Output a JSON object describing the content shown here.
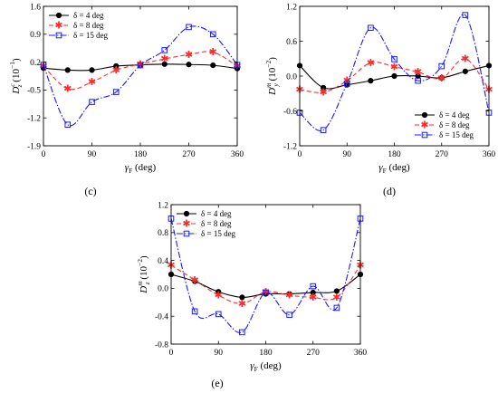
{
  "chart_data": [
    {
      "panel_label": "(c)",
      "type": "line",
      "xlabel": "γ",
      "xlabel_sub": "F",
      "xlabel_unit": "(deg)",
      "ylabel": "D",
      "ylabel_sup": "c",
      "ylabel_sub": "z",
      "ylabel_unit": "(10",
      "ylabel_unit_exp": "−1",
      "ylabel_unit_close": ")",
      "xlim": [
        0,
        360
      ],
      "ylim": [
        -1.9,
        1.6
      ],
      "xticks": [
        "0",
        "90",
        "180",
        "270",
        "360"
      ],
      "yticks": [
        "1.6",
        "0.9",
        "0.2",
        "-0.5",
        "-1.2",
        "-1.9"
      ],
      "x": [
        0,
        45,
        90,
        135,
        180,
        225,
        270,
        315,
        360
      ],
      "series": [
        {
          "name": "δ = 4 deg",
          "color": "#000000",
          "marker": "circle",
          "dash": "",
          "values": [
            0.05,
            0.0,
            0.0,
            0.1,
            0.13,
            0.15,
            0.14,
            0.12,
            0.04
          ]
        },
        {
          "name": "δ = 8 deg",
          "color": "#ff2a2a",
          "marker": "star",
          "dash": "5,3",
          "values": [
            0.1,
            -0.47,
            -0.3,
            0.0,
            0.15,
            0.28,
            0.39,
            0.45,
            0.1
          ]
        },
        {
          "name": "δ = 15 deg",
          "color": "#1a1aff",
          "marker": "square",
          "dash": "7,2,1.5,2",
          "values": [
            0.13,
            -1.37,
            -0.8,
            -0.55,
            0.12,
            0.5,
            1.08,
            0.9,
            0.13
          ]
        }
      ]
    },
    {
      "panel_label": "(d)",
      "type": "line",
      "xlabel": "γ",
      "xlabel_sub": "F",
      "xlabel_unit": "(deg)",
      "ylabel": "D",
      "ylabel_sup": "m",
      "ylabel_sub": "y",
      "ylabel_unit": "(10",
      "ylabel_unit_exp": "−2",
      "ylabel_unit_close": ")",
      "xlim": [
        0,
        360
      ],
      "ylim": [
        -1.2,
        1.2
      ],
      "xticks": [
        "0",
        "90",
        "180",
        "270",
        "360"
      ],
      "yticks": [
        "1.2",
        "0.6",
        "0.0",
        "-0.6",
        "-1.2"
      ],
      "x": [
        0,
        45,
        90,
        135,
        180,
        225,
        270,
        315,
        360
      ],
      "series": [
        {
          "name": "δ = 4 deg",
          "color": "#000000",
          "marker": "circle",
          "dash": "",
          "values": [
            0.18,
            -0.2,
            -0.15,
            -0.08,
            0.0,
            0.0,
            -0.03,
            0.08,
            0.18
          ]
        },
        {
          "name": "δ = 8 deg",
          "color": "#ff2a2a",
          "marker": "star",
          "dash": "5,3",
          "values": [
            -0.23,
            -0.28,
            -0.08,
            0.23,
            0.16,
            0.07,
            -0.04,
            0.3,
            -0.23
          ]
        },
        {
          "name": "δ = 15 deg",
          "color": "#1a1aff",
          "marker": "square",
          "dash": "7,2,1.5,2",
          "values": [
            -0.63,
            -0.93,
            -0.13,
            0.83,
            0.29,
            -0.08,
            0.17,
            1.05,
            -0.63
          ]
        }
      ]
    },
    {
      "panel_label": "(e)",
      "type": "line",
      "xlabel": "γ",
      "xlabel_sub": "F",
      "xlabel_unit": "(deg)",
      "ylabel": "D",
      "ylabel_sup": "m",
      "ylabel_sub": "z",
      "ylabel_unit": "(10",
      "ylabel_unit_exp": "−2",
      "ylabel_unit_close": ")",
      "xlim": [
        0,
        360
      ],
      "ylim": [
        -0.8,
        1.2
      ],
      "xticks": [
        "0",
        "90",
        "180",
        "270",
        "360"
      ],
      "yticks": [
        "1.2",
        "0.8",
        "0.4",
        "0.0",
        "-0.4",
        "-0.8"
      ],
      "x": [
        0,
        45,
        90,
        135,
        180,
        225,
        270,
        315,
        360
      ],
      "series": [
        {
          "name": "δ = 4 deg",
          "color": "#000000",
          "marker": "circle",
          "dash": "",
          "values": [
            0.2,
            0.1,
            -0.05,
            -0.13,
            -0.08,
            -0.08,
            -0.06,
            -0.04,
            0.2
          ]
        },
        {
          "name": "δ = 8 deg",
          "color": "#ff2a2a",
          "marker": "star",
          "dash": "5,3",
          "values": [
            0.33,
            0.12,
            -0.1,
            -0.22,
            -0.05,
            -0.1,
            -0.13,
            -0.13,
            0.33
          ]
        },
        {
          "name": "δ = 15 deg",
          "color": "#1a1aff",
          "marker": "square",
          "dash": "7,2,1.5,2",
          "values": [
            1.0,
            -0.33,
            -0.37,
            -0.63,
            -0.06,
            -0.38,
            0.03,
            -0.28,
            1.0
          ]
        }
      ]
    }
  ]
}
